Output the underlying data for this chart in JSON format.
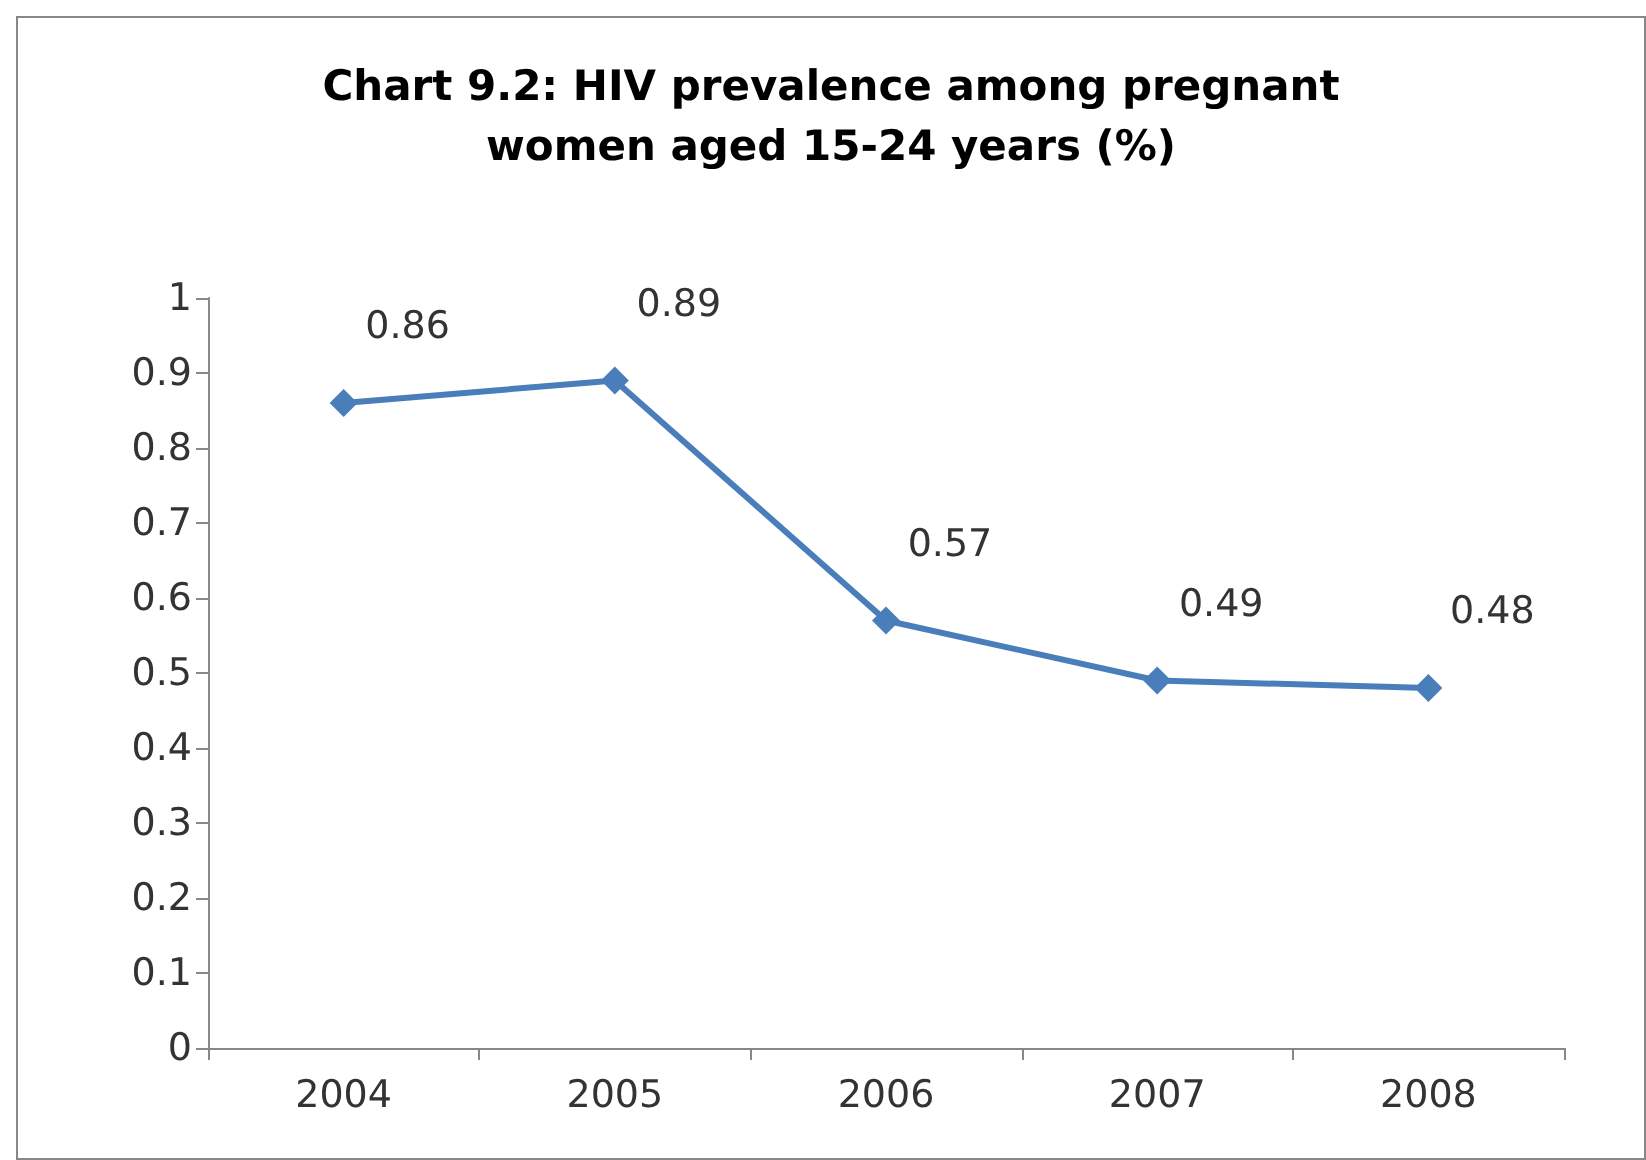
{
  "chart_data": {
    "type": "line",
    "title": "Chart 9.2: HIV prevalence among pregnant\nwomen aged 15-24 years (%)",
    "categories": [
      "2004",
      "2005",
      "2006",
      "2007",
      "2008"
    ],
    "series": [
      {
        "color": "#4a7ebb",
        "values": [
          0.86,
          0.89,
          0.57,
          0.49,
          0.48
        ]
      }
    ],
    "ylim": [
      0,
      1
    ],
    "yticks": [
      0,
      0.1,
      0.2,
      0.3,
      0.4,
      0.5,
      0.6,
      0.7,
      0.8,
      0.9,
      1
    ],
    "grid": false,
    "marker": "diamond",
    "line_style": "solid",
    "data_labels": true
  }
}
